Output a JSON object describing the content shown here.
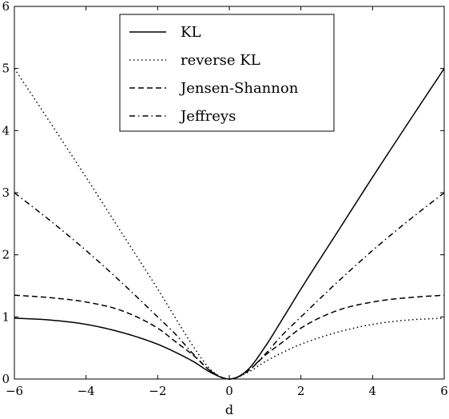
{
  "chart_data": {
    "type": "line",
    "xlabel": "d",
    "ylabel": "",
    "title": "",
    "xlim": [
      -6,
      6
    ],
    "ylim": [
      0,
      6
    ],
    "xticks": [
      -6,
      -4,
      -2,
      0,
      2,
      4,
      6
    ],
    "xtick_labels": [
      "−6",
      "−4",
      "−2",
      "0",
      "2",
      "4",
      "6"
    ],
    "yticks": [
      0,
      1,
      2,
      3,
      4,
      5,
      6
    ],
    "ytick_labels": [
      "0",
      "1",
      "2",
      "3",
      "4",
      "5",
      "6"
    ],
    "grid": false,
    "legend_position": "top-center",
    "x": [
      -6,
      -5,
      -4,
      -3,
      -2,
      -1.5,
      -1,
      -0.5,
      0,
      0.5,
      1,
      1.5,
      2,
      3,
      4,
      5,
      6
    ],
    "series": [
      {
        "name": "KL",
        "line_style": "solid",
        "values": [
          0.98,
          0.95,
          0.88,
          0.75,
          0.56,
          0.43,
          0.28,
          0.1,
          0.0,
          0.14,
          0.52,
          0.98,
          1.45,
          2.35,
          3.25,
          4.13,
          5.0
        ]
      },
      {
        "name": "reverse KL",
        "line_style": "dotted",
        "values": [
          5.0,
          4.13,
          3.25,
          2.35,
          1.45,
          0.98,
          0.52,
          0.14,
          0.0,
          0.1,
          0.28,
          0.43,
          0.56,
          0.75,
          0.88,
          0.95,
          0.98
        ]
      },
      {
        "name": "Jensen-Shannon",
        "line_style": "dashed",
        "values": [
          1.35,
          1.31,
          1.24,
          1.1,
          0.82,
          0.6,
          0.38,
          0.12,
          0.0,
          0.12,
          0.38,
          0.6,
          0.82,
          1.1,
          1.24,
          1.31,
          1.35
        ]
      },
      {
        "name": "Jeffreys",
        "line_style": "dashdot",
        "values": [
          3.0,
          2.55,
          2.07,
          1.55,
          1.0,
          0.72,
          0.4,
          0.12,
          0.0,
          0.12,
          0.4,
          0.72,
          1.0,
          1.55,
          2.07,
          2.55,
          3.0
        ]
      }
    ]
  }
}
